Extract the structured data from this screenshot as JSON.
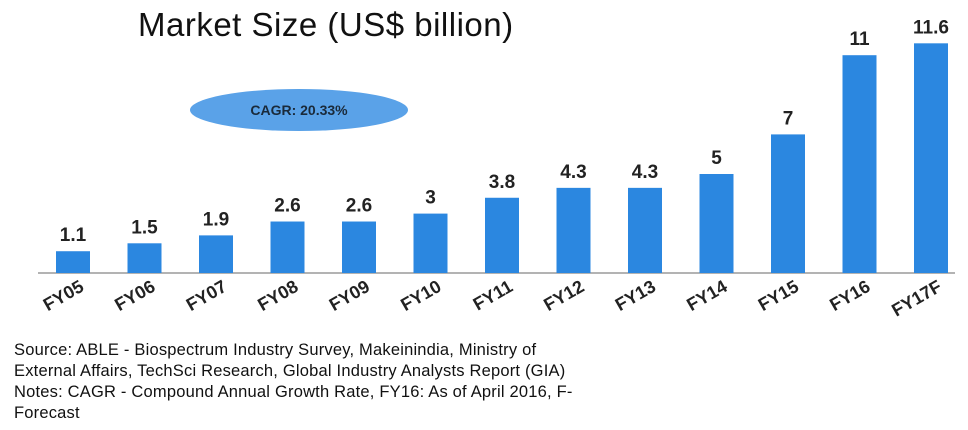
{
  "chart_data": {
    "type": "bar",
    "title": "Market Size (US$ billion)",
    "categories": [
      "FY05",
      "FY06",
      "FY07",
      "FY08",
      "FY09",
      "FY10",
      "FY11",
      "FY12",
      "FY13",
      "FY14",
      "FY15",
      "FY16",
      "FY17F"
    ],
    "values": [
      1.1,
      1.5,
      1.9,
      2.6,
      2.6,
      3,
      3.8,
      4.3,
      4.3,
      5,
      7,
      11,
      11.6
    ],
    "value_labels": [
      "1.1",
      "1.5",
      "1.9",
      "2.6",
      "2.6",
      "3",
      "3.8",
      "4.3",
      "4.3",
      "5",
      "7",
      "11",
      "11.6"
    ],
    "annotation": "CAGR: 20.33%",
    "bar_color": "#2b87e0",
    "xlabel": "",
    "ylabel": "",
    "grid": false
  },
  "notes": {
    "line1": "Source: ABLE - Biospectrum Industry Survey, Makeinindia, Ministry of",
    "line2": "External Affairs, TechSci Research, Global Industry Analysts Report (GIA)",
    "line3": "Notes: CAGR - Compound Annual Growth Rate, FY16: As of April 2016,  F-",
    "line4": "Forecast"
  }
}
